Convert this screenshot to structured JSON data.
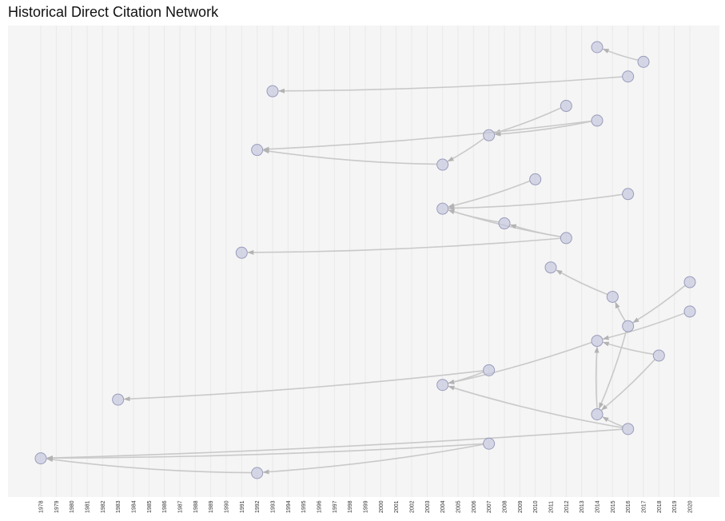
{
  "title": "Historical Direct Citation Network",
  "colors": {
    "panel": "#f5f5f5",
    "gridline": "#e9e9e9",
    "edge": "#c9c9c9",
    "arrow": "#b3b3b3",
    "node_fill": "#c2c4dd",
    "node_stroke": "#9a9cbb"
  },
  "chart_data": {
    "type": "network",
    "title": "Historical Direct Citation Network",
    "x_axis": {
      "label": "",
      "ticks": [
        1978,
        1979,
        1980,
        1981,
        1982,
        1983,
        1984,
        1985,
        1986,
        1987,
        1988,
        1989,
        1990,
        1991,
        1992,
        1993,
        1994,
        1995,
        1996,
        1997,
        1998,
        1999,
        2000,
        2001,
        2002,
        2003,
        2004,
        2005,
        2006,
        2007,
        2008,
        2009,
        2010,
        2011,
        2012,
        2013,
        2014,
        2015,
        2016,
        2017,
        2018,
        2019,
        2020
      ]
    },
    "nodes": [
      {
        "id": "a1",
        "year": 2014,
        "row": 1
      },
      {
        "id": "a2",
        "year": 2017,
        "row": 2
      },
      {
        "id": "b1",
        "year": 2016,
        "row": 3
      },
      {
        "id": "b2",
        "year": 1993,
        "row": 4
      },
      {
        "id": "c1",
        "year": 2012,
        "row": 5
      },
      {
        "id": "c2",
        "year": 2014,
        "row": 6
      },
      {
        "id": "c3",
        "year": 2007,
        "row": 7
      },
      {
        "id": "c4",
        "year": 1992,
        "row": 8
      },
      {
        "id": "c5",
        "year": 2004,
        "row": 9
      },
      {
        "id": "d1",
        "year": 2010,
        "row": 10
      },
      {
        "id": "d2",
        "year": 2016,
        "row": 11
      },
      {
        "id": "d3",
        "year": 2004,
        "row": 12
      },
      {
        "id": "d4",
        "year": 2008,
        "row": 13
      },
      {
        "id": "d5",
        "year": 2012,
        "row": 14
      },
      {
        "id": "d6",
        "year": 1991,
        "row": 15
      },
      {
        "id": "e1",
        "year": 2011,
        "row": 16
      },
      {
        "id": "e2",
        "year": 2020,
        "row": 17
      },
      {
        "id": "e3",
        "year": 2015,
        "row": 18
      },
      {
        "id": "e4",
        "year": 2020,
        "row": 19
      },
      {
        "id": "e5",
        "year": 2016,
        "row": 20
      },
      {
        "id": "e6",
        "year": 2014,
        "row": 21
      },
      {
        "id": "e7",
        "year": 2018,
        "row": 22
      },
      {
        "id": "e8",
        "year": 2007,
        "row": 23
      },
      {
        "id": "e9",
        "year": 2004,
        "row": 24
      },
      {
        "id": "e10",
        "year": 1983,
        "row": 25
      },
      {
        "id": "e11",
        "year": 2014,
        "row": 26
      },
      {
        "id": "e12",
        "year": 2016,
        "row": 27
      },
      {
        "id": "f1",
        "year": 2007,
        "row": 28
      },
      {
        "id": "f2",
        "year": 1978,
        "row": 29
      },
      {
        "id": "f3",
        "year": 1992,
        "row": 30
      }
    ],
    "edges": [
      [
        "a2",
        "a1"
      ],
      [
        "b1",
        "b2"
      ],
      [
        "c1",
        "c3"
      ],
      [
        "c2",
        "c3"
      ],
      [
        "c2",
        "c4"
      ],
      [
        "c3",
        "c5"
      ],
      [
        "c5",
        "c4"
      ],
      [
        "d1",
        "d3"
      ],
      [
        "d2",
        "d3"
      ],
      [
        "d5",
        "d3"
      ],
      [
        "d5",
        "d4"
      ],
      [
        "d4",
        "d3"
      ],
      [
        "d5",
        "d6"
      ],
      [
        "e3",
        "e1"
      ],
      [
        "e5",
        "e3"
      ],
      [
        "e2",
        "e5"
      ],
      [
        "e4",
        "e6"
      ],
      [
        "e5",
        "e11"
      ],
      [
        "e7",
        "e11"
      ],
      [
        "e7",
        "e6"
      ],
      [
        "e6",
        "e9"
      ],
      [
        "e8",
        "e9"
      ],
      [
        "e8",
        "e10"
      ],
      [
        "e11",
        "e6"
      ],
      [
        "e12",
        "e11"
      ],
      [
        "e12",
        "e9"
      ],
      [
        "e12",
        "f2"
      ],
      [
        "f1",
        "f2"
      ],
      [
        "f1",
        "f3"
      ],
      [
        "f3",
        "f2"
      ]
    ]
  }
}
